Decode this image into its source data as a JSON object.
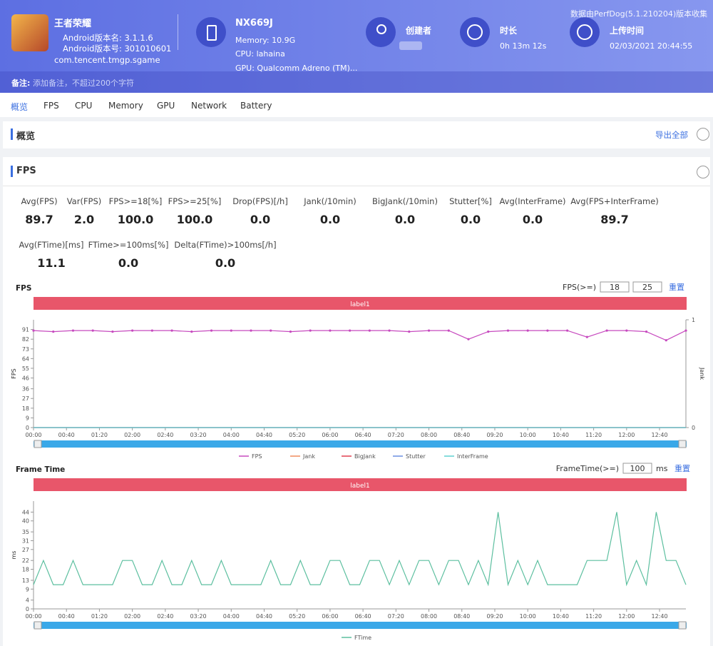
{
  "header": {
    "app_name": "王者荣耀",
    "version_name": "Android版本名: 3.1.1.6",
    "version_code": "Android版本号: 301010601",
    "package": "com.tencent.tmgp.sgame",
    "device": "NX669J",
    "memory": "Memory: 10.9G",
    "cpu": "CPU: lahaina",
    "gpu": "GPU: Qualcomm Adreno (TM)...",
    "creator_label": "创建者",
    "duration_label": "时长",
    "duration": "0h 13m 12s",
    "upload_label": "上传时间",
    "upload_time": "02/03/2021 20:44:55",
    "source_note": "数据由PerfDog(5.1.210204)版本收集",
    "note_label": "备注:",
    "note_placeholder": "添加备注，不超过200个字符"
  },
  "tabs": [
    "概览",
    "FPS",
    "CPU",
    "Memory",
    "GPU",
    "Network",
    "Battery"
  ],
  "overview": {
    "title": "概览",
    "export": "导出全部"
  },
  "fps_section": {
    "title": "FPS",
    "stats_row1": [
      {
        "label": "Avg(FPS)",
        "value": "89.7"
      },
      {
        "label": "Var(FPS)",
        "value": "2.0"
      },
      {
        "label": "FPS>=18[%]",
        "value": "100.0"
      },
      {
        "label": "FPS>=25[%]",
        "value": "100.0"
      },
      {
        "label": "Drop(FPS)[/h]",
        "value": "0.0"
      },
      {
        "label": "Jank(/10min)",
        "value": "0.0"
      },
      {
        "label": "BigJank(/10min)",
        "value": "0.0"
      },
      {
        "label": "Stutter[%]",
        "value": "0.0"
      },
      {
        "label": "Avg(InterFrame)",
        "value": "0.0"
      },
      {
        "label": "Avg(FPS+InterFrame)",
        "value": "89.7"
      }
    ],
    "stats_row2": [
      {
        "label": "Avg(FTime)[ms]",
        "value": "11.1"
      },
      {
        "label": "FTime>=100ms[%]",
        "value": "0.0"
      },
      {
        "label": "Delta(FTime)>100ms[/h]",
        "value": "0.0"
      }
    ]
  },
  "chart_data": [
    {
      "type": "line",
      "title": "FPS",
      "threshold_label": "FPS(>=)",
      "thresholds": [
        "18",
        "25"
      ],
      "reset": "重置",
      "band_label": "label1",
      "y_label": "FPS",
      "y2_label": "Jank",
      "xlim": [
        0,
        792
      ],
      "xticks": [
        {
          "value": 0,
          "label": "00:00"
        },
        {
          "value": 40,
          "label": "00:40"
        },
        {
          "value": 80,
          "label": "01:20"
        },
        {
          "value": 120,
          "label": "02:00"
        },
        {
          "value": 160,
          "label": "02:40"
        },
        {
          "value": 200,
          "label": "03:20"
        },
        {
          "value": 240,
          "label": "04:00"
        },
        {
          "value": 280,
          "label": "04:40"
        },
        {
          "value": 320,
          "label": "05:20"
        },
        {
          "value": 360,
          "label": "06:00"
        },
        {
          "value": 400,
          "label": "06:40"
        },
        {
          "value": 440,
          "label": "07:20"
        },
        {
          "value": 480,
          "label": "08:00"
        },
        {
          "value": 520,
          "label": "08:40"
        },
        {
          "value": 560,
          "label": "09:20"
        },
        {
          "value": 600,
          "label": "10:00"
        },
        {
          "value": 640,
          "label": "10:40"
        },
        {
          "value": 680,
          "label": "11:20"
        },
        {
          "value": 720,
          "label": "12:00"
        },
        {
          "value": 760,
          "label": "12:40"
        }
      ],
      "ylim": [
        0,
        100
      ],
      "yticks": [
        0,
        9,
        18,
        27,
        36,
        46,
        55,
        64,
        73,
        82,
        91
      ],
      "y2lim": [
        0,
        1
      ],
      "y2ticks": [
        0,
        1
      ],
      "x": [
        0,
        24,
        48,
        72,
        96,
        120,
        144,
        168,
        192,
        216,
        240,
        264,
        288,
        312,
        336,
        360,
        384,
        408,
        432,
        456,
        480,
        504,
        528,
        552,
        576,
        600,
        624,
        648,
        672,
        696,
        720,
        744,
        768,
        792
      ],
      "series": [
        {
          "name": "FPS",
          "color": "#c74bbf",
          "values": [
            90,
            89,
            90,
            90,
            89,
            90,
            90,
            90,
            89,
            90,
            90,
            90,
            90,
            89,
            90,
            90,
            90,
            90,
            90,
            89,
            90,
            90,
            82,
            89,
            90,
            90,
            90,
            90,
            84,
            90,
            90,
            89,
            81,
            90
          ]
        },
        {
          "name": "Jank",
          "color": "#f08a5d",
          "axis": "y2",
          "values": [
            0,
            0,
            0,
            0,
            0,
            0,
            0,
            0,
            0,
            0,
            0,
            0,
            0,
            0,
            0,
            0,
            0,
            0,
            0,
            0,
            0,
            0,
            0,
            0,
            0,
            0,
            0,
            0,
            0,
            0,
            0,
            0,
            0,
            0
          ]
        },
        {
          "name": "BigJank",
          "color": "#e04050",
          "axis": "y2",
          "values": [
            0,
            0,
            0,
            0,
            0,
            0,
            0,
            0,
            0,
            0,
            0,
            0,
            0,
            0,
            0,
            0,
            0,
            0,
            0,
            0,
            0,
            0,
            0,
            0,
            0,
            0,
            0,
            0,
            0,
            0,
            0,
            0,
            0,
            0
          ]
        },
        {
          "name": "Stutter",
          "color": "#6a8fe0",
          "axis": "y2",
          "values": [
            0,
            0,
            0,
            0,
            0,
            0,
            0,
            0,
            0,
            0,
            0,
            0,
            0,
            0,
            0,
            0,
            0,
            0,
            0,
            0,
            0,
            0,
            0,
            0,
            0,
            0,
            0,
            0,
            0,
            0,
            0,
            0,
            0,
            0
          ]
        },
        {
          "name": "InterFrame",
          "color": "#5fd0d0",
          "axis": "y2",
          "values": [
            0,
            0,
            0,
            0,
            0,
            0,
            0,
            0,
            0,
            0,
            0,
            0,
            0,
            0,
            0,
            0,
            0,
            0,
            0,
            0,
            0,
            0,
            0,
            0,
            0,
            0,
            0,
            0,
            0,
            0,
            0,
            0,
            0,
            0
          ]
        }
      ]
    },
    {
      "type": "line",
      "title": "Frame Time",
      "threshold_label": "FrameTime(>=)",
      "thresholds": [
        "100"
      ],
      "threshold_unit": "ms",
      "reset": "重置",
      "band_label": "label1",
      "y_label": "ms",
      "xlim": [
        0,
        792
      ],
      "xticks": [
        {
          "value": 0,
          "label": "00:00"
        },
        {
          "value": 40,
          "label": "00:40"
        },
        {
          "value": 80,
          "label": "01:20"
        },
        {
          "value": 120,
          "label": "02:00"
        },
        {
          "value": 160,
          "label": "02:40"
        },
        {
          "value": 200,
          "label": "03:20"
        },
        {
          "value": 240,
          "label": "04:00"
        },
        {
          "value": 280,
          "label": "04:40"
        },
        {
          "value": 320,
          "label": "05:20"
        },
        {
          "value": 360,
          "label": "06:00"
        },
        {
          "value": 400,
          "label": "06:40"
        },
        {
          "value": 440,
          "label": "07:20"
        },
        {
          "value": 480,
          "label": "08:00"
        },
        {
          "value": 520,
          "label": "08:40"
        },
        {
          "value": 560,
          "label": "09:20"
        },
        {
          "value": 600,
          "label": "10:00"
        },
        {
          "value": 640,
          "label": "10:40"
        },
        {
          "value": 680,
          "label": "11:20"
        },
        {
          "value": 720,
          "label": "12:00"
        },
        {
          "value": 760,
          "label": "12:40"
        }
      ],
      "ylim": [
        0,
        49
      ],
      "yticks": [
        0,
        4,
        9,
        13,
        18,
        22,
        27,
        31,
        35,
        40,
        44
      ],
      "x": [
        0,
        12,
        24,
        36,
        48,
        60,
        72,
        84,
        96,
        108,
        120,
        132,
        144,
        156,
        168,
        180,
        192,
        204,
        216,
        228,
        240,
        252,
        264,
        276,
        288,
        300,
        312,
        324,
        336,
        348,
        360,
        372,
        384,
        396,
        408,
        420,
        432,
        444,
        456,
        468,
        480,
        492,
        504,
        516,
        528,
        540,
        552,
        564,
        576,
        588,
        600,
        612,
        624,
        636,
        648,
        660,
        672,
        684,
        696,
        708,
        720,
        732,
        744,
        756,
        768,
        780,
        792
      ],
      "series": [
        {
          "name": "FTime",
          "color": "#5cbf9f",
          "values": [
            11,
            22,
            11,
            11,
            22,
            11,
            11,
            11,
            11,
            22,
            22,
            11,
            11,
            22,
            11,
            11,
            22,
            11,
            11,
            22,
            11,
            11,
            11,
            11,
            22,
            11,
            11,
            22,
            11,
            11,
            22,
            22,
            11,
            11,
            22,
            22,
            11,
            22,
            11,
            22,
            22,
            11,
            22,
            22,
            11,
            22,
            11,
            44,
            11,
            22,
            11,
            22,
            11,
            11,
            11,
            11,
            22,
            22,
            22,
            44,
            11,
            22,
            11,
            44,
            22,
            22,
            11
          ]
        }
      ]
    }
  ]
}
